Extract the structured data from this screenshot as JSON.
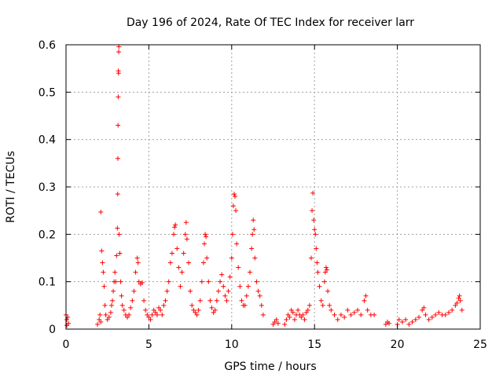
{
  "chart_data": {
    "type": "scatter",
    "title": "Day 196 of 2024, Rate Of TEC Index for receiver larr",
    "xlabel": "GPS time / hours",
    "ylabel": "ROTI / TECUs",
    "xlim": [
      0,
      25
    ],
    "ylim": [
      0,
      0.6
    ],
    "xticks": [
      0,
      5,
      10,
      15,
      20,
      25
    ],
    "yticks": [
      0,
      0.1,
      0.2,
      0.3,
      0.4,
      0.5,
      0.6
    ],
    "grid": true,
    "marker": "+",
    "color": "#ff0000",
    "series": [
      {
        "points": [
          [
            0.0,
            0.03
          ],
          [
            0.05,
            0.02
          ],
          [
            0.1,
            0.025
          ],
          [
            0.15,
            0.012
          ],
          [
            0.05,
            0.008
          ],
          [
            1.9,
            0.01
          ],
          [
            2.0,
            0.02
          ],
          [
            2.05,
            0.03
          ],
          [
            2.1,
            0.015
          ],
          [
            2.1,
            0.247
          ],
          [
            2.15,
            0.165
          ],
          [
            2.2,
            0.14
          ],
          [
            2.25,
            0.12
          ],
          [
            2.3,
            0.09
          ],
          [
            2.35,
            0.05
          ],
          [
            2.4,
            0.03
          ],
          [
            2.5,
            0.02
          ],
          [
            2.6,
            0.025
          ],
          [
            2.7,
            0.035
          ],
          [
            2.75,
            0.05
          ],
          [
            2.8,
            0.06
          ],
          [
            2.85,
            0.08
          ],
          [
            2.9,
            0.1
          ],
          [
            2.95,
            0.12
          ],
          [
            3.0,
            0.1
          ],
          [
            3.05,
            0.155
          ],
          [
            3.1,
            0.213
          ],
          [
            3.12,
            0.285
          ],
          [
            3.13,
            0.36
          ],
          [
            3.14,
            0.43
          ],
          [
            3.15,
            0.49
          ],
          [
            3.16,
            0.545
          ],
          [
            3.17,
            0.54
          ],
          [
            3.18,
            0.585
          ],
          [
            3.19,
            0.596
          ],
          [
            3.2,
            0.2
          ],
          [
            3.25,
            0.16
          ],
          [
            3.3,
            0.1
          ],
          [
            3.35,
            0.07
          ],
          [
            3.4,
            0.05
          ],
          [
            3.5,
            0.04
          ],
          [
            3.6,
            0.03
          ],
          [
            3.7,
            0.025
          ],
          [
            3.8,
            0.03
          ],
          [
            3.9,
            0.045
          ],
          [
            4.0,
            0.06
          ],
          [
            4.1,
            0.08
          ],
          [
            4.2,
            0.12
          ],
          [
            4.3,
            0.15
          ],
          [
            4.35,
            0.14
          ],
          [
            4.4,
            0.1
          ],
          [
            4.5,
            0.095
          ],
          [
            4.6,
            0.098
          ],
          [
            4.7,
            0.06
          ],
          [
            4.8,
            0.04
          ],
          [
            4.9,
            0.03
          ],
          [
            5.0,
            0.025
          ],
          [
            5.1,
            0.02
          ],
          [
            5.2,
            0.03
          ],
          [
            5.3,
            0.04
          ],
          [
            5.4,
            0.035
          ],
          [
            5.5,
            0.03
          ],
          [
            5.6,
            0.045
          ],
          [
            5.7,
            0.04
          ],
          [
            5.8,
            0.03
          ],
          [
            5.9,
            0.05
          ],
          [
            6.0,
            0.06
          ],
          [
            6.1,
            0.08
          ],
          [
            6.2,
            0.1
          ],
          [
            6.3,
            0.14
          ],
          [
            6.4,
            0.16
          ],
          [
            6.5,
            0.2
          ],
          [
            6.55,
            0.215
          ],
          [
            6.6,
            0.22
          ],
          [
            6.7,
            0.17
          ],
          [
            6.8,
            0.13
          ],
          [
            6.9,
            0.09
          ],
          [
            7.0,
            0.12
          ],
          [
            7.1,
            0.16
          ],
          [
            7.2,
            0.2
          ],
          [
            7.25,
            0.225
          ],
          [
            7.3,
            0.19
          ],
          [
            7.4,
            0.14
          ],
          [
            7.5,
            0.08
          ],
          [
            7.6,
            0.05
          ],
          [
            7.7,
            0.04
          ],
          [
            7.8,
            0.035
          ],
          [
            7.9,
            0.03
          ],
          [
            8.0,
            0.04
          ],
          [
            8.1,
            0.06
          ],
          [
            8.2,
            0.1
          ],
          [
            8.3,
            0.14
          ],
          [
            8.35,
            0.18
          ],
          [
            8.4,
            0.2
          ],
          [
            8.45,
            0.195
          ],
          [
            8.5,
            0.15
          ],
          [
            8.6,
            0.1
          ],
          [
            8.7,
            0.06
          ],
          [
            8.8,
            0.045
          ],
          [
            8.9,
            0.035
          ],
          [
            9.0,
            0.04
          ],
          [
            9.1,
            0.06
          ],
          [
            9.2,
            0.08
          ],
          [
            9.3,
            0.1
          ],
          [
            9.4,
            0.115
          ],
          [
            9.5,
            0.09
          ],
          [
            9.6,
            0.07
          ],
          [
            9.7,
            0.06
          ],
          [
            9.8,
            0.08
          ],
          [
            9.9,
            0.11
          ],
          [
            10.0,
            0.15
          ],
          [
            10.05,
            0.2
          ],
          [
            10.1,
            0.26
          ],
          [
            10.15,
            0.285
          ],
          [
            10.2,
            0.28
          ],
          [
            10.25,
            0.25
          ],
          [
            10.3,
            0.18
          ],
          [
            10.4,
            0.13
          ],
          [
            10.5,
            0.09
          ],
          [
            10.6,
            0.06
          ],
          [
            10.7,
            0.05
          ],
          [
            10.8,
            0.05
          ],
          [
            10.9,
            0.07
          ],
          [
            11.0,
            0.09
          ],
          [
            11.1,
            0.12
          ],
          [
            11.2,
            0.17
          ],
          [
            11.25,
            0.2
          ],
          [
            11.3,
            0.23
          ],
          [
            11.35,
            0.21
          ],
          [
            11.4,
            0.15
          ],
          [
            11.5,
            0.1
          ],
          [
            11.6,
            0.08
          ],
          [
            11.7,
            0.07
          ],
          [
            11.8,
            0.05
          ],
          [
            11.9,
            0.03
          ],
          [
            12.5,
            0.01
          ],
          [
            12.6,
            0.015
          ],
          [
            12.7,
            0.02
          ],
          [
            12.8,
            0.012
          ],
          [
            13.2,
            0.01
          ],
          [
            13.3,
            0.02
          ],
          [
            13.4,
            0.03
          ],
          [
            13.5,
            0.025
          ],
          [
            13.6,
            0.04
          ],
          [
            13.7,
            0.035
          ],
          [
            13.8,
            0.02
          ],
          [
            13.9,
            0.03
          ],
          [
            14.0,
            0.04
          ],
          [
            14.1,
            0.03
          ],
          [
            14.2,
            0.025
          ],
          [
            14.3,
            0.03
          ],
          [
            14.4,
            0.02
          ],
          [
            14.5,
            0.035
          ],
          [
            14.6,
            0.04
          ],
          [
            14.7,
            0.05
          ],
          [
            14.8,
            0.15
          ],
          [
            14.85,
            0.25
          ],
          [
            14.9,
            0.287
          ],
          [
            14.95,
            0.23
          ],
          [
            15.0,
            0.21
          ],
          [
            15.05,
            0.2
          ],
          [
            15.1,
            0.17
          ],
          [
            15.15,
            0.14
          ],
          [
            15.2,
            0.12
          ],
          [
            15.3,
            0.09
          ],
          [
            15.4,
            0.06
          ],
          [
            15.5,
            0.05
          ],
          [
            15.6,
            0.1
          ],
          [
            15.65,
            0.12
          ],
          [
            15.7,
            0.13
          ],
          [
            15.75,
            0.125
          ],
          [
            15.8,
            0.08
          ],
          [
            15.9,
            0.05
          ],
          [
            16.0,
            0.04
          ],
          [
            16.2,
            0.03
          ],
          [
            16.4,
            0.02
          ],
          [
            16.6,
            0.03
          ],
          [
            16.8,
            0.025
          ],
          [
            17.0,
            0.04
          ],
          [
            17.2,
            0.03
          ],
          [
            17.4,
            0.035
          ],
          [
            17.6,
            0.04
          ],
          [
            17.8,
            0.03
          ],
          [
            18.0,
            0.06
          ],
          [
            18.1,
            0.07
          ],
          [
            18.2,
            0.04
          ],
          [
            18.4,
            0.03
          ],
          [
            18.6,
            0.03
          ],
          [
            19.3,
            0.01
          ],
          [
            19.4,
            0.015
          ],
          [
            19.5,
            0.012
          ],
          [
            20.0,
            0.01
          ],
          [
            20.1,
            0.02
          ],
          [
            20.3,
            0.015
          ],
          [
            20.5,
            0.02
          ],
          [
            20.7,
            0.01
          ],
          [
            20.9,
            0.015
          ],
          [
            21.1,
            0.02
          ],
          [
            21.3,
            0.025
          ],
          [
            21.5,
            0.04
          ],
          [
            21.6,
            0.045
          ],
          [
            21.7,
            0.03
          ],
          [
            21.9,
            0.02
          ],
          [
            22.1,
            0.025
          ],
          [
            22.3,
            0.03
          ],
          [
            22.5,
            0.035
          ],
          [
            22.7,
            0.03
          ],
          [
            22.9,
            0.03
          ],
          [
            23.1,
            0.035
          ],
          [
            23.3,
            0.04
          ],
          [
            23.5,
            0.05
          ],
          [
            23.6,
            0.055
          ],
          [
            23.7,
            0.065
          ],
          [
            23.75,
            0.07
          ],
          [
            23.8,
            0.06
          ],
          [
            23.9,
            0.04
          ]
        ]
      }
    ]
  }
}
